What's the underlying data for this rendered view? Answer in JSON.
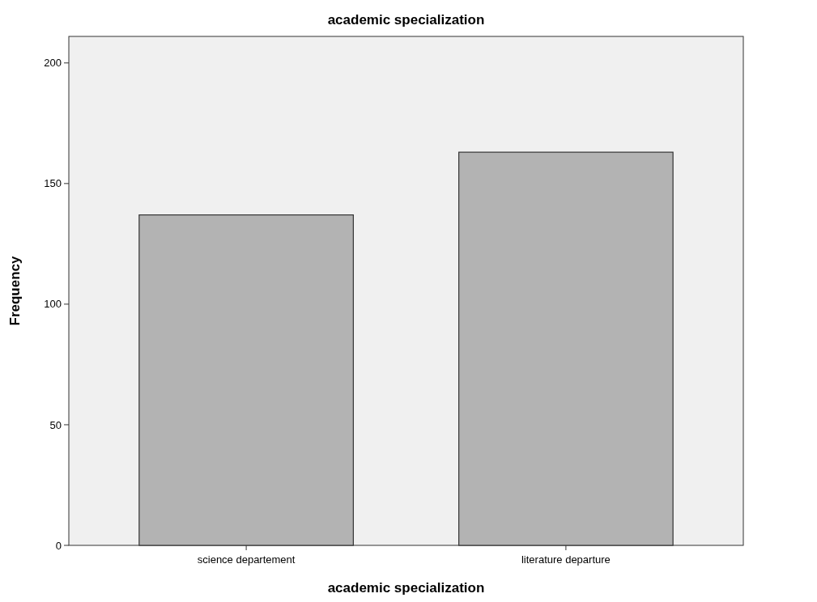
{
  "chart_data": {
    "type": "bar",
    "title": "academic specialization",
    "xlabel": "academic specialization",
    "ylabel": "Frequency",
    "categories": [
      "science departement",
      "literature departure"
    ],
    "values": [
      137,
      163
    ],
    "color": "#b3b3b3",
    "ylim": [
      0,
      211
    ],
    "yticks": [
      0,
      50,
      100,
      150,
      200
    ],
    "grid": false
  }
}
